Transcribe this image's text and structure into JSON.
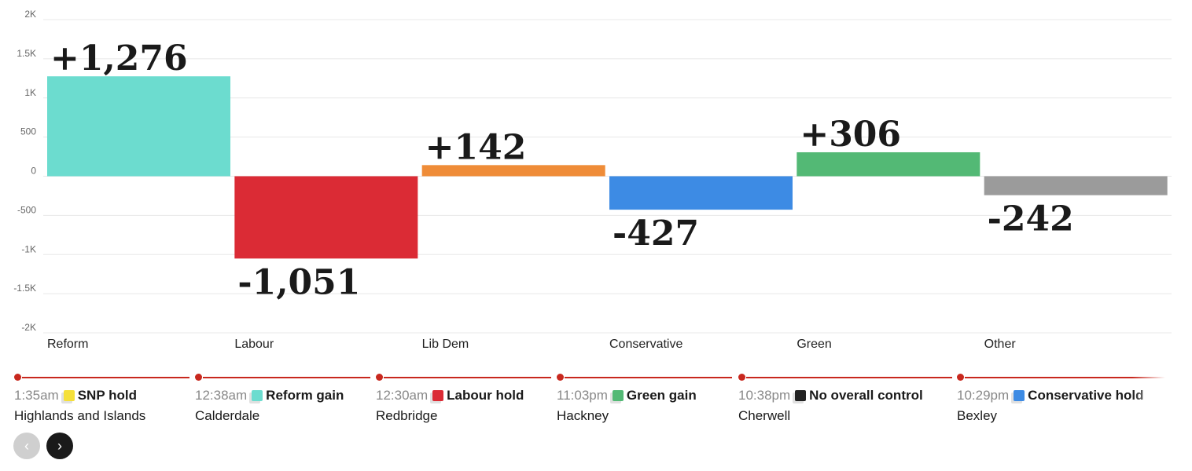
{
  "chart_data": {
    "type": "bar",
    "categories": [
      "Reform",
      "Labour",
      "Lib Dem",
      "Conservative",
      "Green",
      "Other"
    ],
    "values": [
      1276,
      -1051,
      142,
      -427,
      306,
      -242
    ],
    "value_labels": [
      "+1,276",
      "-1,051",
      "+142",
      "-427",
      "+306",
      "-242"
    ],
    "colors": [
      "#6cdccf",
      "#db2b35",
      "#ef8c38",
      "#3d8be4",
      "#53b975",
      "#9b9b9b"
    ],
    "ylim": [
      -2000,
      2000
    ],
    "yticks": [
      2000,
      1500,
      1000,
      500,
      0,
      -500,
      -1000,
      -1500,
      -2000
    ],
    "ytick_labels": [
      "2K",
      "1.5K",
      "1K",
      "500",
      "0",
      "-500",
      "-1K",
      "-1.5K",
      "-2K"
    ],
    "grid": true,
    "title": "",
    "xlabel": "",
    "ylabel": ""
  },
  "timeline": [
    {
      "time": "1:35am",
      "result": "SNP hold",
      "place": "Highlands and Islands",
      "color": "#f5e03a"
    },
    {
      "time": "12:38am",
      "result": "Reform gain",
      "place": "Calderdale",
      "color": "#6cdccf"
    },
    {
      "time": "12:30am",
      "result": "Labour hold",
      "place": "Redbridge",
      "color": "#db2b35"
    },
    {
      "time": "11:03pm",
      "result": "Green gain",
      "place": "Hackney",
      "color": "#53b975"
    },
    {
      "time": "10:38pm",
      "result": "No overall control",
      "place": "Cherwell",
      "color": "#222222"
    },
    {
      "time": "10:29pm",
      "result": "Conservative hold",
      "place": "Bexley",
      "color": "#3d8be4"
    }
  ],
  "nav": {
    "prev_icon": "chevron-left-icon",
    "next_icon": "chevron-right-icon",
    "prev_glyph": "‹",
    "next_glyph": "›"
  }
}
